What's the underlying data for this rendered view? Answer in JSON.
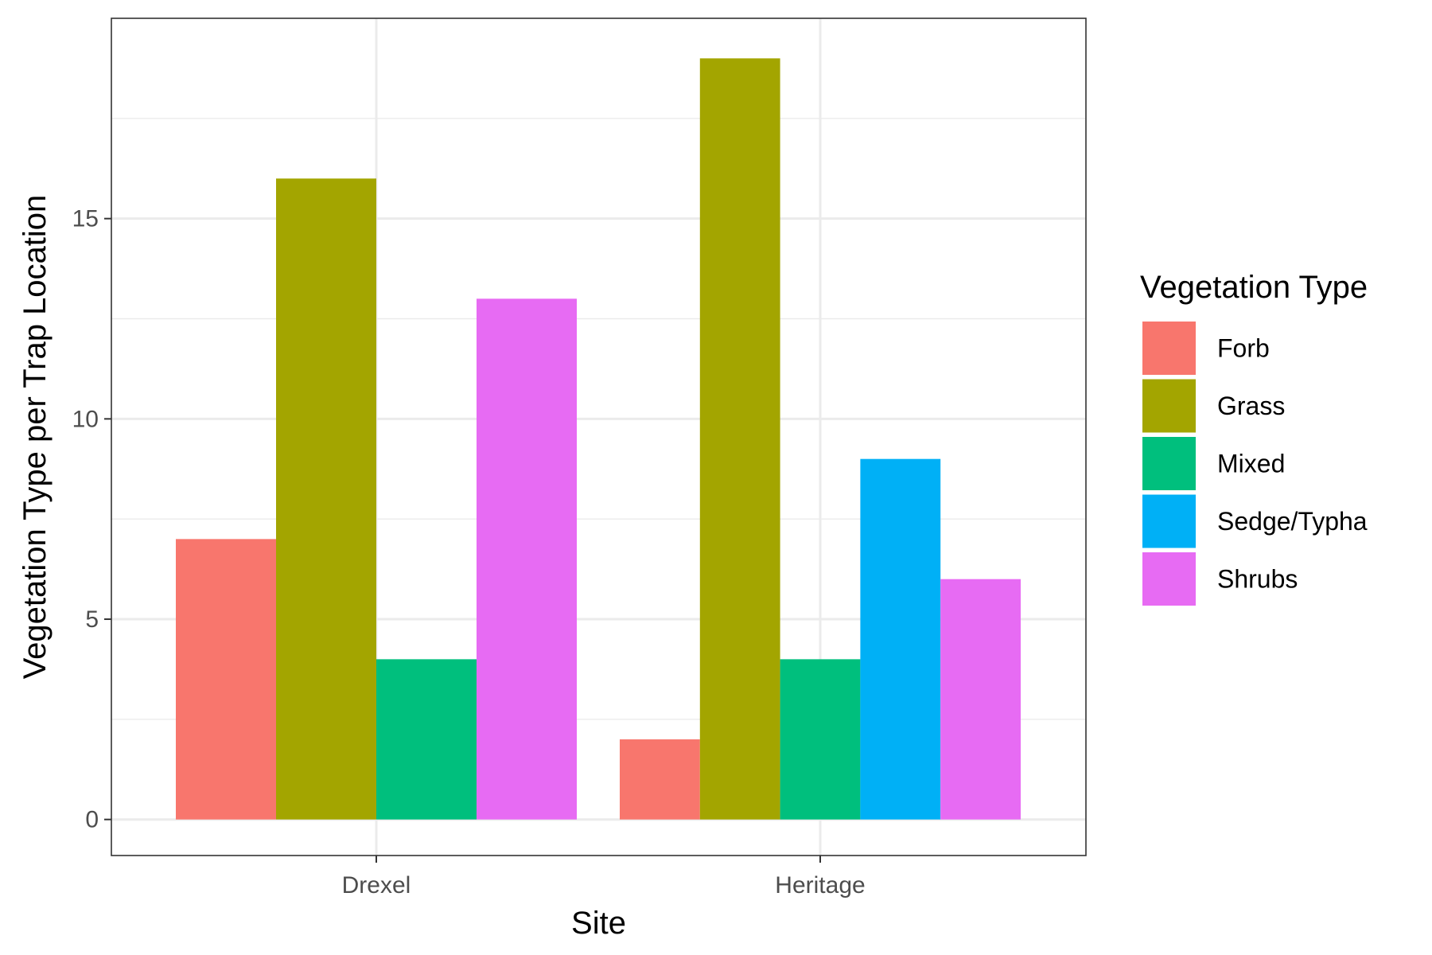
{
  "chart_data": {
    "type": "bar",
    "xlabel": "Site",
    "ylabel": "Vegetation Type per Trap Location",
    "ylim": [
      -0.9,
      20
    ],
    "y_ticks": [
      0,
      5,
      10,
      15
    ],
    "y_tick_labels": [
      "0",
      "5",
      "10",
      "15"
    ],
    "grid": true,
    "legend": {
      "title": "Vegetation Type",
      "position": "right"
    },
    "categories": [
      "Drexel",
      "Heritage"
    ],
    "series": [
      {
        "name": "Forb",
        "color": "#F8766D",
        "values": {
          "Drexel": 7,
          "Heritage": 2
        }
      },
      {
        "name": "Grass",
        "color": "#A3A500",
        "values": {
          "Drexel": 16,
          "Heritage": 19
        }
      },
      {
        "name": "Mixed",
        "color": "#00BF7D",
        "values": {
          "Drexel": 4,
          "Heritage": 4
        }
      },
      {
        "name": "Sedge/Typha",
        "color": "#00B0F6",
        "values": {
          "Heritage": 9
        }
      },
      {
        "name": "Shrubs",
        "color": "#E76BF3",
        "values": {
          "Drexel": 13,
          "Heritage": 6
        }
      }
    ]
  }
}
